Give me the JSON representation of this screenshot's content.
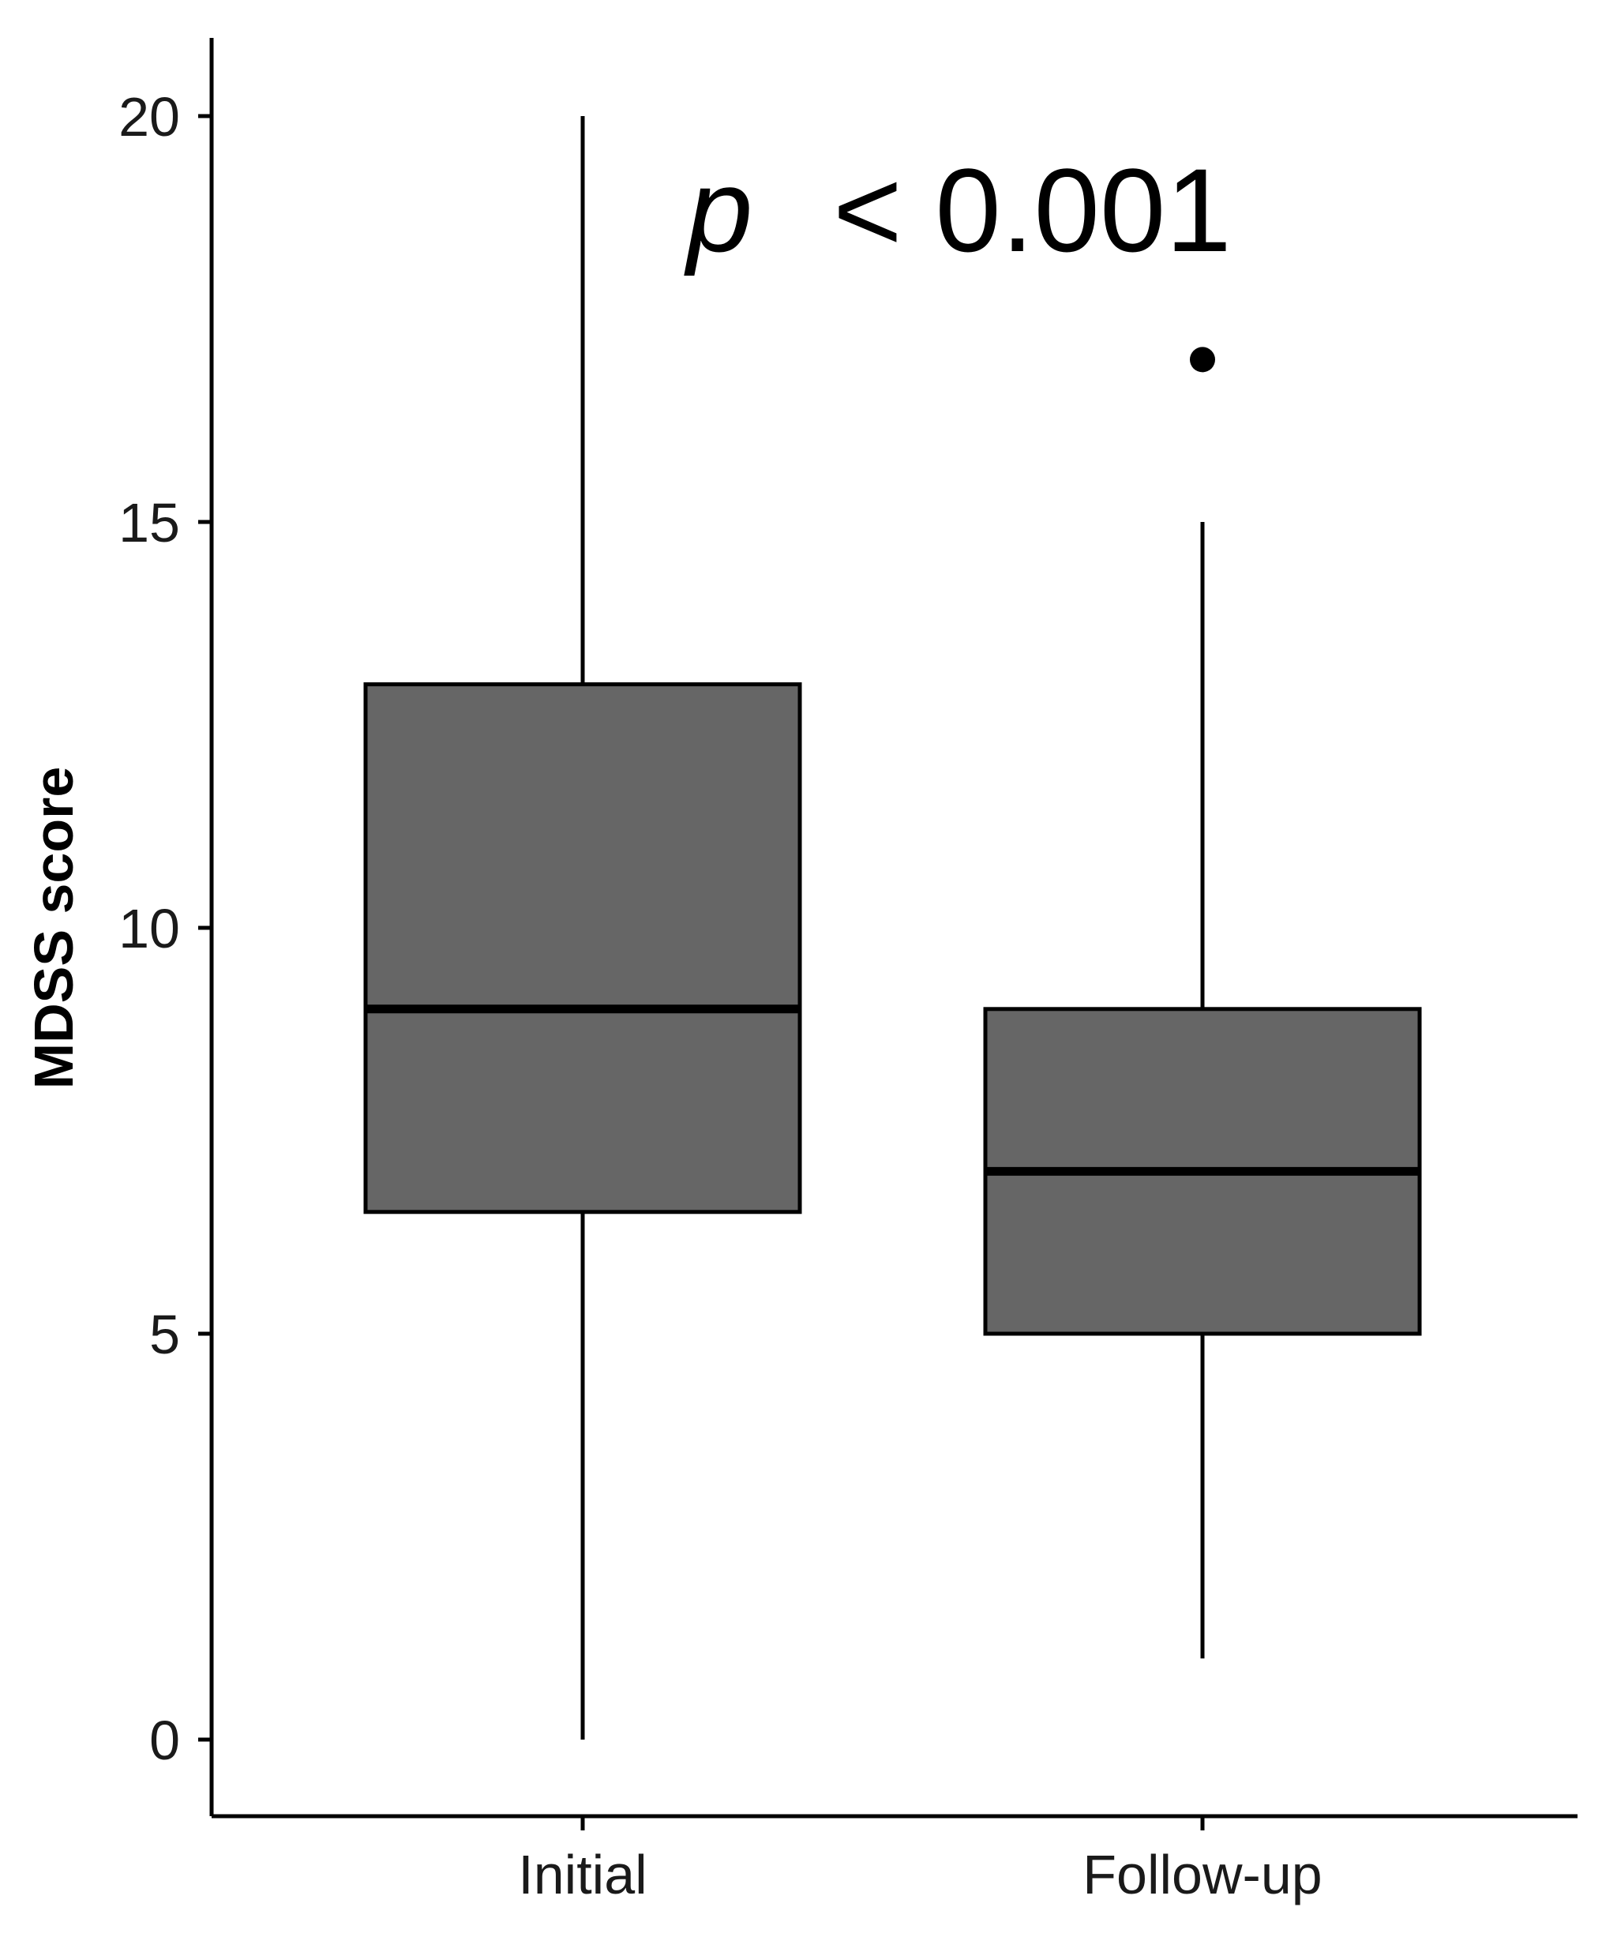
{
  "chart_data": {
    "type": "box",
    "categories": [
      "Initial",
      "Follow-up"
    ],
    "boxes": [
      {
        "category": "Initial",
        "whisker_low": 0,
        "q1": 6.5,
        "median": 9,
        "q3": 13,
        "whisker_high": 20,
        "outliers": []
      },
      {
        "category": "Follow-up",
        "whisker_low": 1,
        "q1": 5,
        "median": 7,
        "q3": 9,
        "whisker_high": 15,
        "outliers": [
          17
        ]
      }
    ],
    "xlabel": "",
    "ylabel": "MDSS score",
    "ylim": [
      -1,
      21
    ],
    "yticks": [
      0,
      5,
      10,
      15,
      20
    ],
    "annotation": {
      "italic": "p",
      "text": "< 0.001"
    },
    "grid": false,
    "colors": {
      "box_fill": "#666666",
      "stroke": "#000000"
    }
  }
}
